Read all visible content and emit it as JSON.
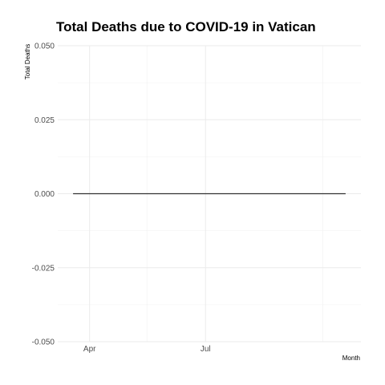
{
  "chart_data": {
    "type": "line",
    "title": "Total Deaths due to COVID-19 in Vatican",
    "xlabel": "Month",
    "ylabel": "Total Deaths",
    "x_type": "date",
    "xlim": [
      "2020-03-07",
      "2020-10-31"
    ],
    "ylim": [
      -0.05,
      0.05
    ],
    "x_ticks": [
      {
        "value": "2020-04-01",
        "label": "Apr"
      },
      {
        "value": "2020-07-01",
        "label": "Jul"
      }
    ],
    "x_minor_ticks": [
      "2020-05-16",
      "2020-10-01"
    ],
    "y_ticks": [
      {
        "value": -0.05,
        "label": "-0.050"
      },
      {
        "value": -0.025,
        "label": "-0.025"
      },
      {
        "value": 0.0,
        "label": "0.000"
      },
      {
        "value": 0.025,
        "label": "0.025"
      },
      {
        "value": 0.05,
        "label": "0.050"
      }
    ],
    "y_minor_ticks": [
      -0.0375,
      -0.0125,
      0.0125,
      0.0375
    ],
    "grid": true,
    "series": [
      {
        "x": [
          "2020-03-19",
          "2020-10-19"
        ],
        "values": [
          0,
          0
        ],
        "color": "#333333"
      }
    ]
  }
}
